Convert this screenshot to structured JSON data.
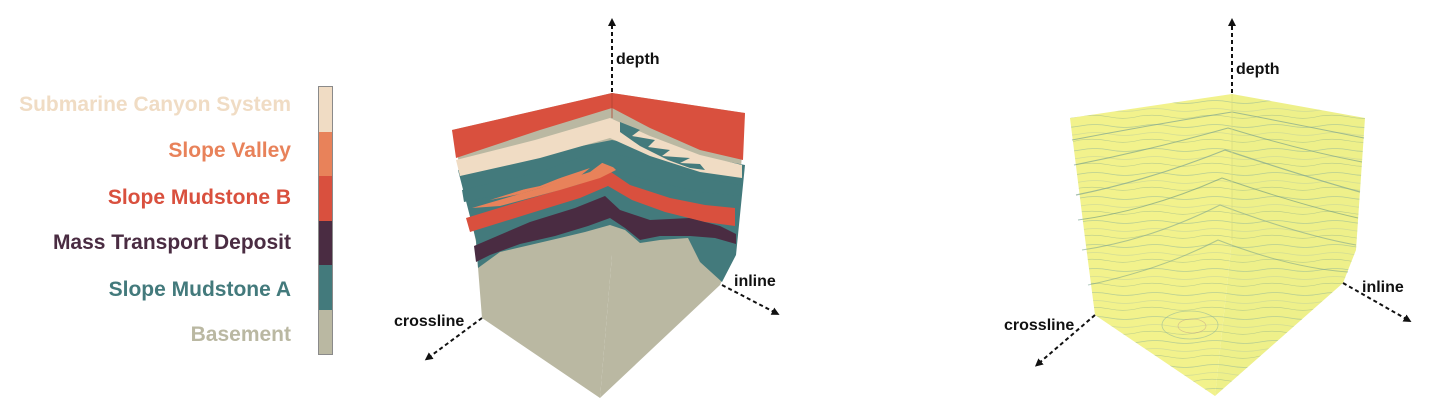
{
  "legend": {
    "items": [
      {
        "label": "Submarine Canyon System",
        "color": "#f0dcc4"
      },
      {
        "label": "Slope Valley",
        "color": "#e8825a"
      },
      {
        "label": "Slope Mudstone B",
        "color": "#d9503e"
      },
      {
        "label": "Mass Transport Deposit",
        "color": "#4a2c42"
      },
      {
        "label": "Slope Mudstone A",
        "color": "#437a7c"
      },
      {
        "label": "Basement",
        "color": "#bab8a2"
      }
    ]
  },
  "left_cube": {
    "axis_depth": "depth",
    "axis_inline": "inline",
    "axis_crossline": "crossline"
  },
  "right_cube": {
    "axis_depth": "depth",
    "axis_inline": "inline",
    "axis_crossline": "crossline",
    "volume_color": "#f2f28c"
  }
}
